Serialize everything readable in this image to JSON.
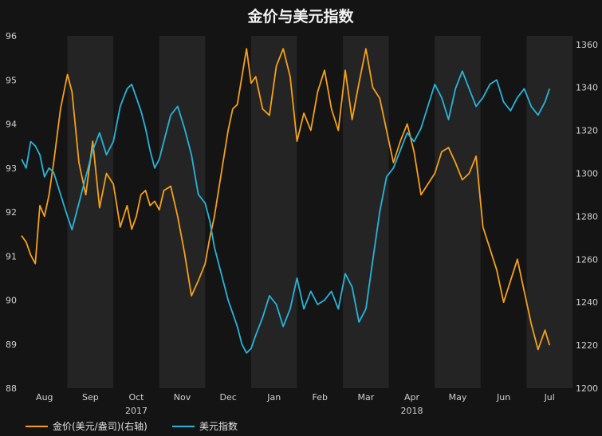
{
  "chart_data": {
    "type": "line",
    "title": "金价与美元指数",
    "months": [
      "Aug",
      "Sep",
      "Oct",
      "Nov",
      "Dec",
      "Jan",
      "Feb",
      "Mar",
      "Apr",
      "May",
      "Jun",
      "Jul"
    ],
    "years": [
      "2017",
      "2018"
    ],
    "left_axis": {
      "ticks": [
        "96",
        "95",
        "94",
        "93",
        "92",
        "91",
        "90",
        "89",
        "88"
      ],
      "ylim": [
        88,
        96
      ]
    },
    "right_axis": {
      "ticks": [
        "1360",
        "1340",
        "1320",
        "1300",
        "1280",
        "1260",
        "1240",
        "1220",
        "1200"
      ],
      "ylim": [
        1200,
        1364
      ]
    },
    "grid": false,
    "legend_position": "bottom-left",
    "series": [
      {
        "name": "金价(美元/盎司)(右轴)",
        "axis": "right",
        "color": "#f5a019",
        "x": [
          0,
          0.1,
          0.2,
          0.3,
          0.4,
          0.5,
          0.6,
          0.7,
          0.85,
          1.0,
          1.1,
          1.25,
          1.4,
          1.55,
          1.7,
          1.85,
          2.0,
          2.15,
          2.3,
          2.4,
          2.5,
          2.6,
          2.7,
          2.8,
          2.9,
          3.0,
          3.1,
          3.25,
          3.4,
          3.55,
          3.7,
          3.85,
          4.0,
          4.1,
          4.2,
          4.35,
          4.5,
          4.6,
          4.7,
          4.8,
          4.9,
          5.0,
          5.1,
          5.25,
          5.4,
          5.55,
          5.7,
          5.85,
          6.0,
          6.15,
          6.3,
          6.45,
          6.6,
          6.75,
          6.9,
          7.05,
          7.2,
          7.35,
          7.5,
          7.65,
          7.8,
          7.95,
          8.1,
          8.25,
          8.4,
          8.55,
          8.7,
          8.85,
          9.0,
          9.15,
          9.3,
          9.45,
          9.6,
          9.75,
          9.9,
          10.05,
          10.2,
          10.35,
          10.5,
          10.65,
          10.8,
          10.95,
          11.1,
          11.25,
          11.4,
          11.5
        ],
        "values": [
          1271,
          1268,
          1262,
          1258,
          1285,
          1280,
          1290,
          1305,
          1330,
          1346,
          1338,
          1305,
          1290,
          1315,
          1284,
          1300,
          1295,
          1275,
          1285,
          1274,
          1280,
          1290,
          1292,
          1285,
          1287,
          1283,
          1292,
          1294,
          1280,
          1263,
          1243,
          1250,
          1258,
          1270,
          1280,
          1300,
          1320,
          1330,
          1332,
          1345,
          1358,
          1342,
          1345,
          1330,
          1327,
          1350,
          1358,
          1345,
          1315,
          1328,
          1320,
          1338,
          1348,
          1330,
          1320,
          1348,
          1325,
          1342,
          1358,
          1340,
          1335,
          1320,
          1305,
          1315,
          1323,
          1310,
          1290,
          1295,
          1300,
          1310,
          1312,
          1305,
          1297,
          1300,
          1308,
          1275,
          1265,
          1255,
          1240,
          1250,
          1260,
          1245,
          1230,
          1218,
          1227,
          1220
        ]
      },
      {
        "name": "美元指数",
        "axis": "left",
        "color": "#27b4dc",
        "x": [
          0,
          0.1,
          0.2,
          0.3,
          0.4,
          0.5,
          0.6,
          0.7,
          0.85,
          1.0,
          1.1,
          1.25,
          1.4,
          1.55,
          1.7,
          1.85,
          2.0,
          2.15,
          2.3,
          2.4,
          2.5,
          2.6,
          2.7,
          2.8,
          2.9,
          3.0,
          3.1,
          3.25,
          3.4,
          3.55,
          3.7,
          3.85,
          4.0,
          4.1,
          4.2,
          4.35,
          4.5,
          4.6,
          4.7,
          4.8,
          4.9,
          5.0,
          5.1,
          5.25,
          5.4,
          5.55,
          5.7,
          5.85,
          6.0,
          6.15,
          6.3,
          6.45,
          6.6,
          6.75,
          6.9,
          7.05,
          7.2,
          7.35,
          7.5,
          7.65,
          7.8,
          7.95,
          8.1,
          8.25,
          8.4,
          8.55,
          8.7,
          8.85,
          9.0,
          9.15,
          9.3,
          9.45,
          9.6,
          9.75,
          9.9,
          10.05,
          10.2,
          10.35,
          10.5,
          10.65,
          10.8,
          10.95,
          11.1,
          11.25,
          11.4,
          11.5
        ],
        "values": [
          93.2,
          93.0,
          93.6,
          93.5,
          93.3,
          92.8,
          93.0,
          92.9,
          92.4,
          91.9,
          91.6,
          92.2,
          92.8,
          93.4,
          93.8,
          93.3,
          93.6,
          94.4,
          94.8,
          94.9,
          94.6,
          94.3,
          93.9,
          93.4,
          93.0,
          93.2,
          93.6,
          94.2,
          94.4,
          93.9,
          93.3,
          92.4,
          92.2,
          91.8,
          91.2,
          90.6,
          90.0,
          89.7,
          89.4,
          89.0,
          88.8,
          88.9,
          89.2,
          89.6,
          90.1,
          89.9,
          89.4,
          89.8,
          90.5,
          89.8,
          90.2,
          89.9,
          90.0,
          90.2,
          89.8,
          90.6,
          90.3,
          89.5,
          89.8,
          90.9,
          92.0,
          92.8,
          93.0,
          93.4,
          93.8,
          93.6,
          93.9,
          94.4,
          94.9,
          94.6,
          94.1,
          94.8,
          95.2,
          94.8,
          94.4,
          94.6,
          94.9,
          95.0,
          94.5,
          94.3,
          94.6,
          94.8,
          94.4,
          94.2,
          94.5,
          94.8
        ]
      }
    ]
  }
}
